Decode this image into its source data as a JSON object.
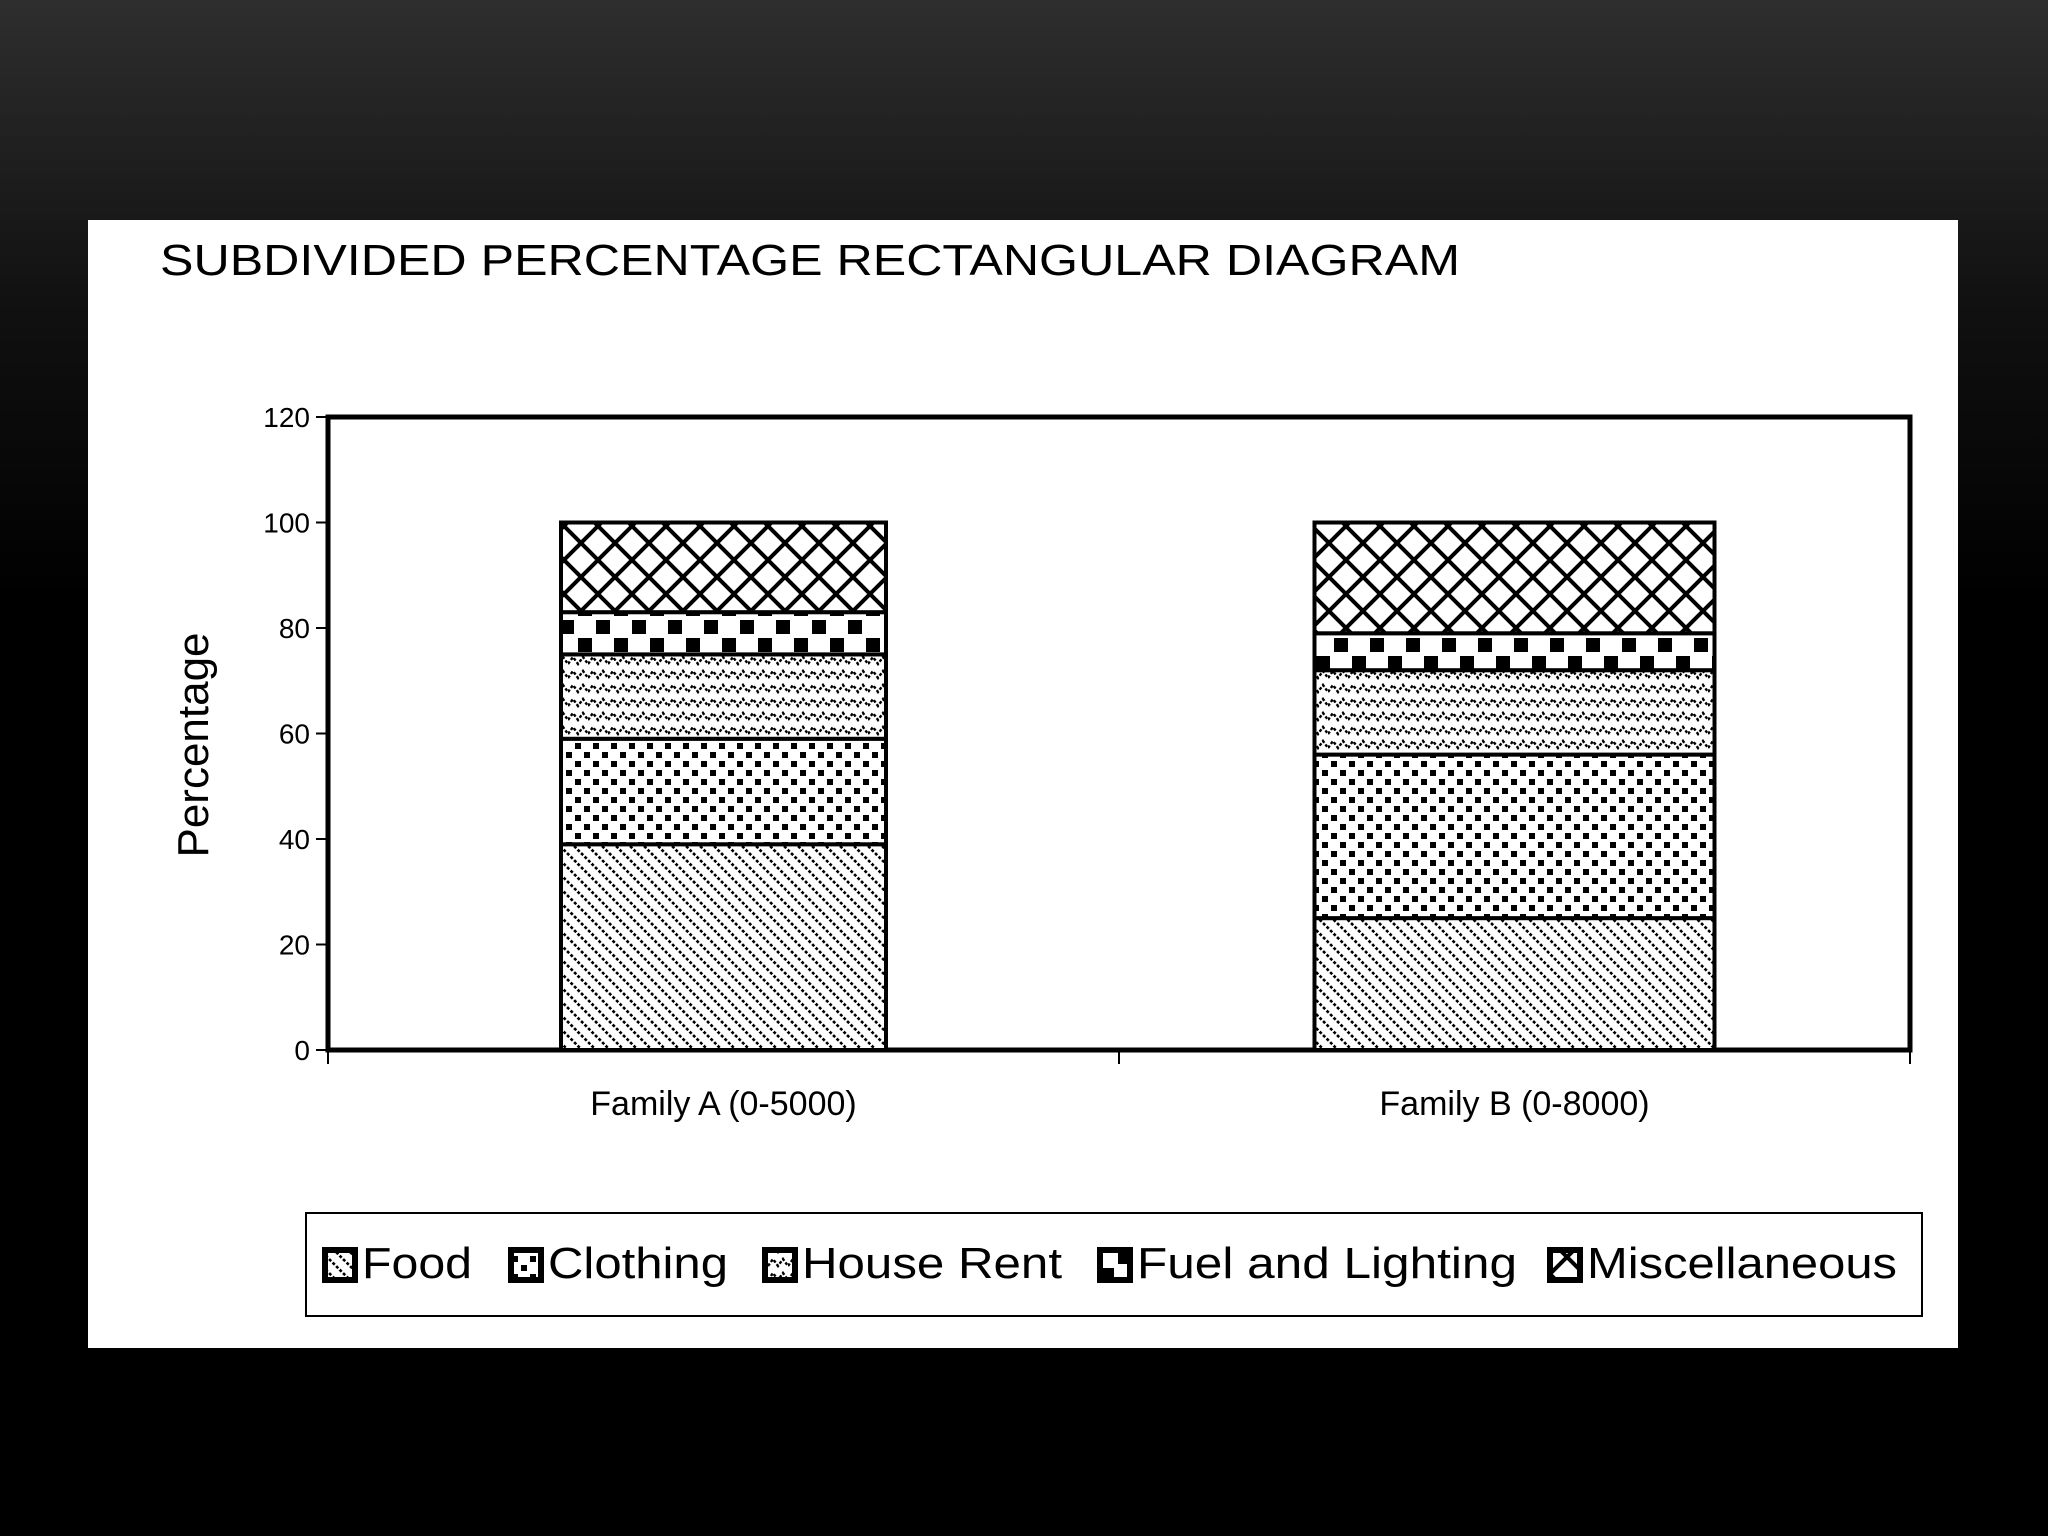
{
  "chart_data": {
    "type": "bar",
    "stacked": true,
    "title": "SUBDIVIDED PERCENTAGE  RECTANGULAR DIAGRAM",
    "xlabel": "",
    "ylabel": "Percentage",
    "ylim": [
      0,
      120
    ],
    "yticks": [
      0,
      20,
      40,
      60,
      80,
      100,
      120
    ],
    "grid": false,
    "legend_position": "bottom",
    "categories": [
      "Family A (0-5000)",
      "Family B (0-8000)"
    ],
    "series": [
      {
        "name": "Food",
        "pattern": "diagonal-lines",
        "values": [
          39,
          25
        ]
      },
      {
        "name": "Clothing",
        "pattern": "dots",
        "values": [
          20,
          31
        ]
      },
      {
        "name": "House Rent",
        "pattern": "zigzag",
        "values": [
          16,
          16
        ]
      },
      {
        "name": "Fuel and Lighting",
        "pattern": "checker",
        "values": [
          8,
          7
        ]
      },
      {
        "name": "Miscellaneous",
        "pattern": "lattice",
        "values": [
          17,
          21
        ]
      }
    ],
    "colors": {
      "ink": "#000000",
      "paper": "#ffffff"
    }
  }
}
